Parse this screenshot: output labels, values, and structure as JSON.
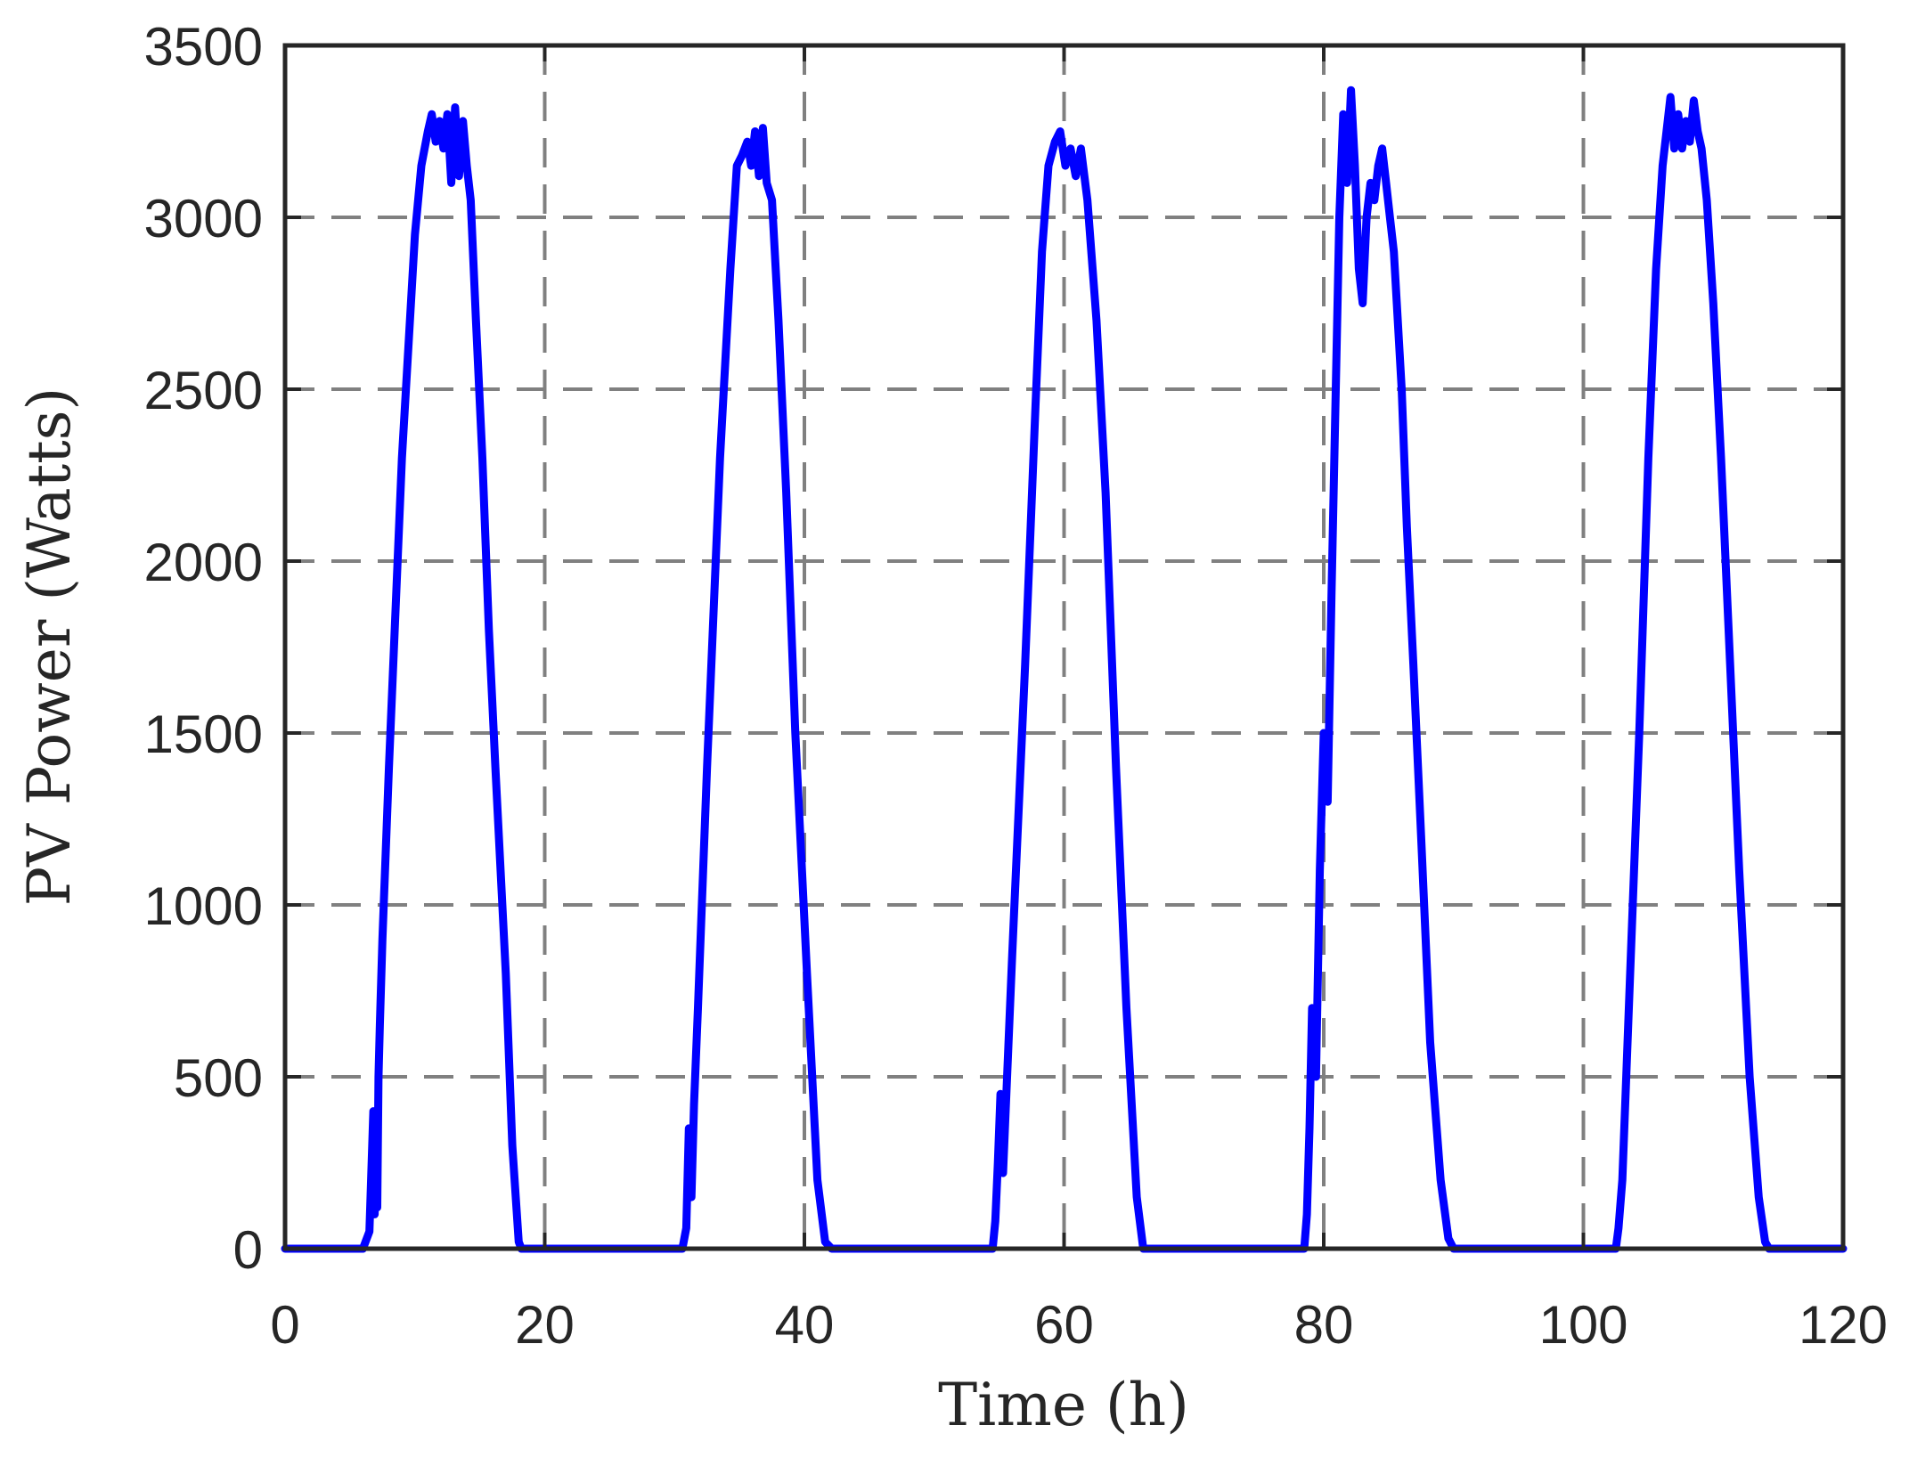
{
  "chart_data": {
    "type": "line",
    "title": "",
    "xlabel": "Time (h)",
    "ylabel": "PV Power (Watts)",
    "xlim": [
      0,
      120
    ],
    "ylim": [
      0,
      3500
    ],
    "xticks": [
      0,
      20,
      40,
      60,
      80,
      100,
      120
    ],
    "yticks": [
      0,
      500,
      1000,
      1500,
      2000,
      2500,
      3000,
      3500
    ],
    "grid": true,
    "grid_style": "dashed",
    "legend": null,
    "colors": {
      "line": "#0000ff",
      "grid": "#808080",
      "axis": "#262626"
    },
    "series": [
      {
        "name": "PV Power",
        "x": [
          0,
          6,
          6.5,
          6.8,
          6.9,
          7.0,
          7.1,
          7.2,
          7.3,
          7.5,
          8,
          9,
          10,
          10.5,
          11,
          11.3,
          11.6,
          11.9,
          12.2,
          12.5,
          12.8,
          13.1,
          13.4,
          13.7,
          14,
          14.3,
          14.7,
          15.2,
          15.7,
          16.2,
          17,
          17.5,
          18,
          18.2,
          30,
          30.6,
          30.9,
          31.1,
          31.3,
          31.5,
          31.8,
          32.5,
          33.5,
          34.3,
          34.8,
          35.2,
          35.6,
          35.9,
          36.2,
          36.5,
          36.8,
          37.1,
          37.5,
          38,
          38.6,
          39.3,
          40.2,
          41,
          41.6,
          42.1,
          54,
          54.5,
          54.7,
          54.9,
          55.1,
          55.3,
          56,
          57,
          57.8,
          58.3,
          58.8,
          59.3,
          59.7,
          60.1,
          60.5,
          60.9,
          61.3,
          61.8,
          62.5,
          63.2,
          64,
          64.8,
          65.6,
          66.1,
          78,
          78.5,
          78.7,
          78.9,
          79.1,
          79.4,
          79.7,
          80.0,
          80.3,
          80.6,
          80.9,
          81.2,
          81.5,
          81.8,
          82.1,
          82.4,
          82.7,
          83.0,
          83.3,
          83.6,
          83.9,
          84.2,
          84.5,
          84.8,
          85.1,
          85.4,
          85.7,
          86.0,
          86.4,
          86.9,
          87.5,
          88.2,
          89,
          89.6,
          90,
          102,
          102.5,
          102.7,
          103,
          103.5,
          104.3,
          105,
          105.6,
          106.1,
          106.4,
          106.7,
          107.0,
          107.3,
          107.6,
          107.9,
          108.2,
          108.5,
          108.8,
          109.1,
          109.5,
          110,
          110.6,
          111.3,
          112,
          112.8,
          113.5,
          114,
          114.3,
          120
        ],
        "y": [
          0,
          0,
          50,
          400,
          100,
          380,
          120,
          500,
          650,
          900,
          1400,
          2300,
          2950,
          3150,
          3250,
          3300,
          3220,
          3280,
          3200,
          3300,
          3100,
          3320,
          3120,
          3280,
          3150,
          3050,
          2700,
          2300,
          1800,
          1400,
          800,
          300,
          20,
          0,
          0,
          0,
          60,
          350,
          150,
          420,
          700,
          1400,
          2300,
          2850,
          3150,
          3180,
          3220,
          3150,
          3250,
          3120,
          3260,
          3100,
          3050,
          2700,
          2200,
          1500,
          800,
          200,
          20,
          0,
          0,
          0,
          80,
          250,
          450,
          220,
          850,
          1700,
          2450,
          2900,
          3150,
          3220,
          3250,
          3150,
          3200,
          3120,
          3200,
          3050,
          2700,
          2200,
          1400,
          700,
          150,
          0,
          0,
          0,
          100,
          350,
          700,
          500,
          1100,
          1500,
          1300,
          1900,
          2450,
          3000,
          3300,
          3100,
          3370,
          3150,
          2850,
          2750,
          3000,
          3100,
          3050,
          3150,
          3200,
          3100,
          3000,
          2900,
          2700,
          2500,
          2100,
          1700,
          1200,
          600,
          200,
          30,
          0,
          0,
          0,
          60,
          200,
          700,
          1500,
          2300,
          2850,
          3150,
          3250,
          3350,
          3200,
          3300,
          3200,
          3280,
          3220,
          3340,
          3250,
          3200,
          3050,
          2750,
          2300,
          1700,
          1100,
          500,
          150,
          20,
          0,
          0
        ]
      }
    ]
  }
}
